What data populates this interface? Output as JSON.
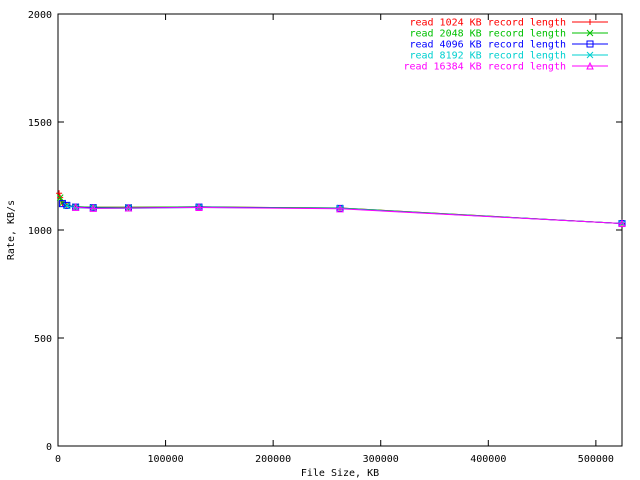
{
  "chart_data": {
    "type": "line",
    "xlabel": "File Size, KB",
    "ylabel": "Rate, KB/s",
    "xlim": [
      0,
      524288
    ],
    "ylim": [
      0,
      2000
    ],
    "x_ticks": [
      0,
      100000,
      200000,
      300000,
      400000,
      500000
    ],
    "y_ticks": [
      0,
      500,
      1000,
      1500,
      2000
    ],
    "x_tick_labels": [
      "0",
      "100000",
      "200000",
      "300000",
      "400000",
      "500000"
    ],
    "y_tick_labels": [
      "0",
      "500",
      "1000",
      "1500",
      "2000"
    ],
    "grid": false,
    "legend_position": "top-right",
    "series": [
      {
        "name": "read 1024 KB record length",
        "color": "#ff0000",
        "marker": "plus",
        "x": [
          1024,
          2048,
          4096,
          8192,
          16384,
          32768,
          65536,
          131072,
          262144,
          524288
        ],
        "y": [
          1170,
          1150,
          1125,
          1115,
          1108,
          1105,
          1105,
          1107,
          1102,
          1030
        ]
      },
      {
        "name": "read 2048 KB record length",
        "color": "#00c000",
        "marker": "cross",
        "x": [
          2048,
          4096,
          8192,
          16384,
          32768,
          65536,
          131072,
          262144,
          524288
        ],
        "y": [
          1150,
          1125,
          1115,
          1108,
          1105,
          1105,
          1107,
          1102,
          1030
        ]
      },
      {
        "name": "read 4096 KB record length",
        "color": "#0000ff",
        "marker": "square",
        "x": [
          4096,
          8192,
          16384,
          32768,
          65536,
          131072,
          262144,
          524288
        ],
        "y": [
          1122,
          1114,
          1106,
          1103,
          1102,
          1106,
          1100,
          1030
        ]
      },
      {
        "name": "read 8192 KB record length",
        "color": "#00d0d0",
        "marker": "x",
        "x": [
          8192,
          16384,
          32768,
          65536,
          131072,
          262144,
          524288
        ],
        "y": [
          1112,
          1103,
          1100,
          1100,
          1104,
          1100,
          1030
        ]
      },
      {
        "name": "read 16384 KB record length",
        "color": "#ff00ff",
        "marker": "triangle",
        "x": [
          16384,
          32768,
          65536,
          131072,
          262144,
          524288
        ],
        "y": [
          1105,
          1100,
          1102,
          1104,
          1098,
          1030
        ]
      }
    ]
  }
}
